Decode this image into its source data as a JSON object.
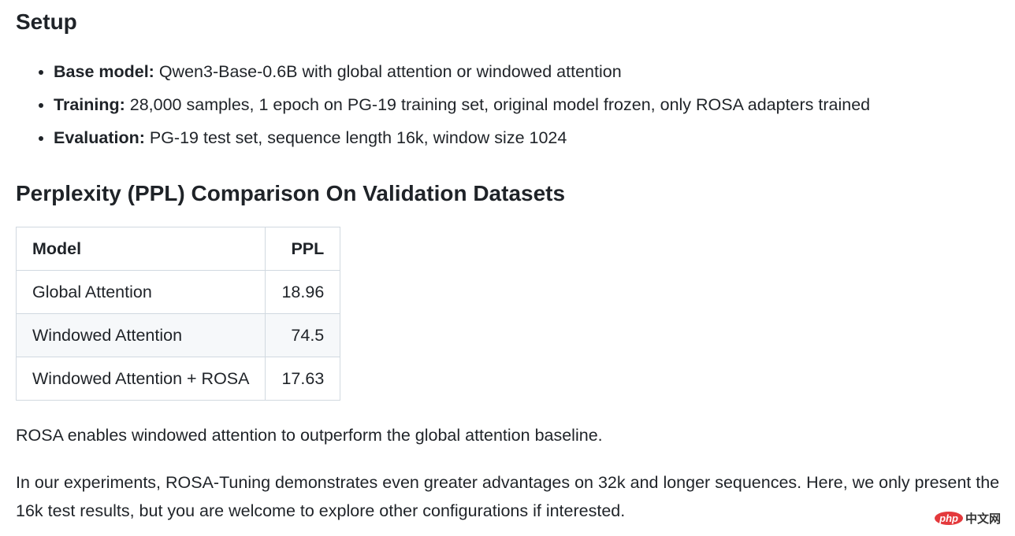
{
  "setup": {
    "heading": "Setup",
    "items": [
      {
        "label": "Base model:",
        "text": " Qwen3-Base-0.6B with global attention or windowed attention"
      },
      {
        "label": "Training:",
        "text": " 28,000 samples, 1 epoch on PG-19 training set, original model frozen, only ROSA adapters trained"
      },
      {
        "label": "Evaluation:",
        "text": " PG-19 test set, sequence length 16k, window size 1024"
      }
    ]
  },
  "ppl": {
    "heading": "Perplexity (PPL) Comparison On Validation Datasets",
    "table": {
      "headers": [
        "Model",
        "PPL"
      ],
      "rows": [
        [
          "Global Attention",
          "18.96"
        ],
        [
          "Windowed Attention",
          "74.5"
        ],
        [
          "Windowed Attention + ROSA",
          "17.63"
        ]
      ]
    }
  },
  "paragraphs": [
    "ROSA enables windowed attention to outperform the global attention baseline.",
    "In our experiments, ROSA-Tuning demonstrates even greater advantages on 32k and longer sequences. Here, we only present the 16k test results, but you are welcome to explore other configurations if interested."
  ],
  "watermark": {
    "logo": "php",
    "text": "中文网"
  }
}
